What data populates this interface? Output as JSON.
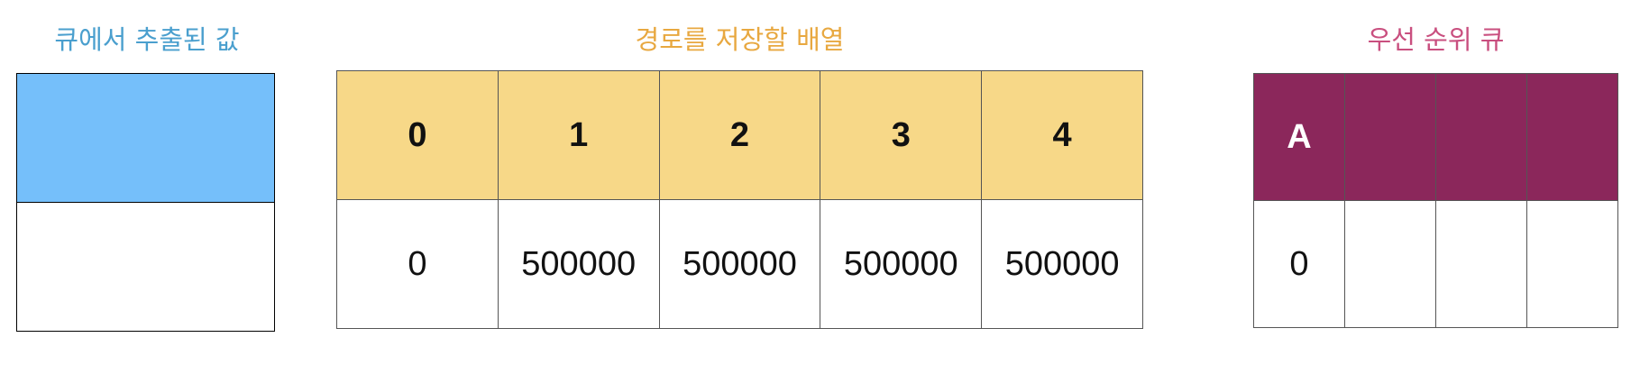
{
  "titles": {
    "extracted": "큐에서 추출된 값",
    "path_array": "경로를 저장할 배열",
    "priority_queue": "우선 순위 큐"
  },
  "extracted": {
    "value": ""
  },
  "path_array": {
    "indices": [
      "0",
      "1",
      "2",
      "3",
      "4"
    ],
    "values": [
      "0",
      "500000",
      "500000",
      "500000",
      "500000"
    ]
  },
  "priority_queue": {
    "nodes": [
      "A",
      "",
      "",
      ""
    ],
    "distances": [
      "0",
      "",
      "",
      ""
    ]
  },
  "colors": {
    "extracted_title": "#4a9fce",
    "path_title": "#e8a840",
    "pq_title": "#c94f7f",
    "extracted_fill": "#75bffa",
    "path_header_fill": "#f7d888",
    "pq_header_fill": "#8b275b"
  }
}
